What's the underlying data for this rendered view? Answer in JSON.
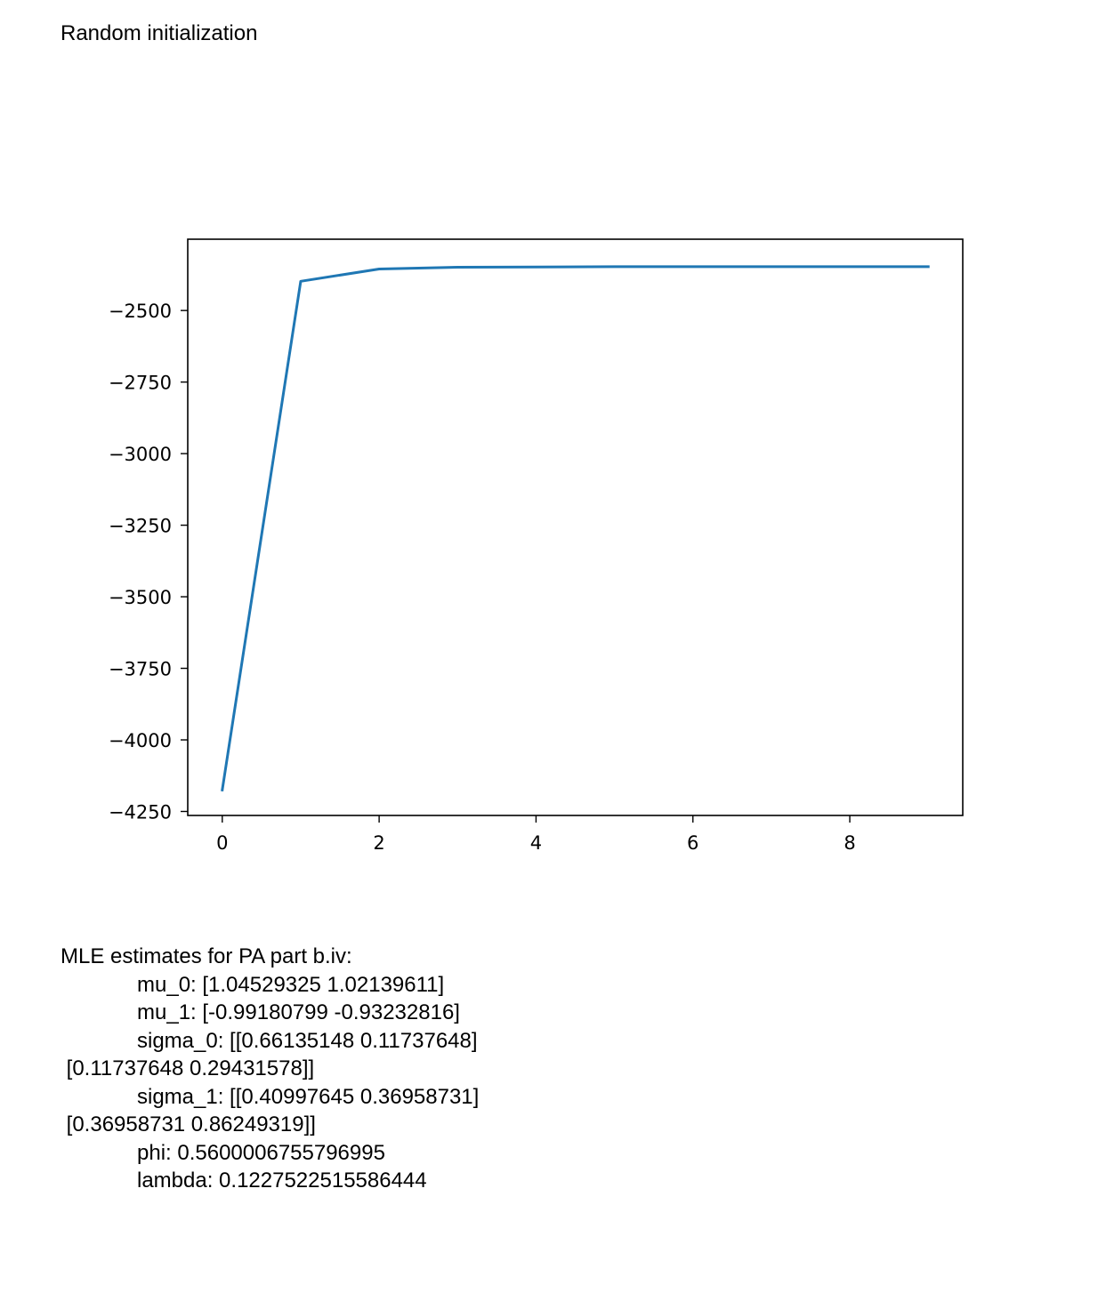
{
  "heading": "Random initialization",
  "chart_data": {
    "type": "line",
    "title": "",
    "xlabel": "",
    "ylabel": "",
    "x": [
      0,
      1,
      2,
      3,
      4,
      5,
      6,
      7,
      8,
      9
    ],
    "series": [
      {
        "values": [
          -4175,
          -2398,
          -2355,
          -2349,
          -2348,
          -2347,
          -2347,
          -2347,
          -2347,
          -2347
        ]
      }
    ],
    "xlim": [
      -0.44,
      9.44
    ],
    "ylim": [
      -4264,
      -2251
    ],
    "xticks": [
      0,
      2,
      4,
      6,
      8
    ],
    "xtick_labels": [
      "0",
      "2",
      "4",
      "6",
      "8"
    ],
    "yticks": [
      -2500,
      -2750,
      -3000,
      -3250,
      -3500,
      -3750,
      -4000,
      -4250
    ],
    "ytick_labels": [
      "−2500",
      "−2750",
      "−3000",
      "−3250",
      "−3500",
      "−3750",
      "−4000",
      "−4250"
    ],
    "grid": false,
    "line_color": "#1f77b4"
  },
  "mle": {
    "header": "MLE estimates for PA part b.iv:",
    "lines": [
      {
        "indent": true,
        "text": "mu_0: [1.04529325 1.02139611]"
      },
      {
        "indent": true,
        "text": "mu_1: [-0.99180799 -0.93232816]"
      },
      {
        "indent": true,
        "text": "sigma_0: [[0.66135148 0.11737648]"
      },
      {
        "indent": false,
        "text": " [0.11737648 0.29431578]]"
      },
      {
        "indent": true,
        "text": "sigma_1: [[0.40997645 0.36958731]"
      },
      {
        "indent": false,
        "text": " [0.36958731 0.86249319]]"
      },
      {
        "indent": true,
        "text": "phi: 0.5600006755796995"
      },
      {
        "indent": true,
        "text": "lambda: 0.1227522515586444"
      }
    ]
  }
}
